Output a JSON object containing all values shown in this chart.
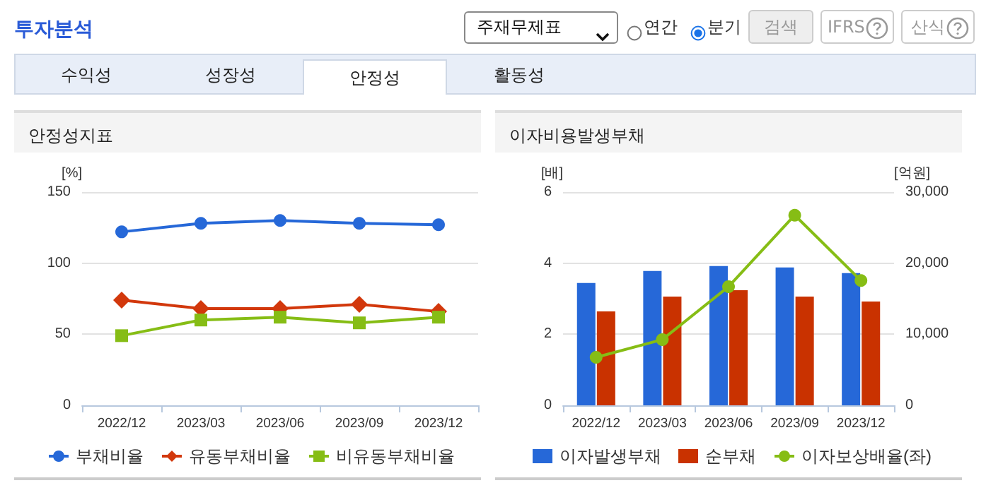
{
  "chart_data": [
    {
      "type": "other",
      "title": "투자분석",
      "annotations": [
        "주재무제표",
        "연간",
        "분기",
        "검색",
        "IFRS",
        "산식",
        "수익성",
        "성장성",
        "안정성",
        "활동성"
      ]
    },
    {
      "type": "line",
      "title": "안정성지표",
      "ylabel": "[%]",
      "categories": [
        "2022/12",
        "2023/03",
        "2023/06",
        "2023/09",
        "2023/12"
      ],
      "ylim": [
        0,
        150
      ],
      "yticks": [
        0,
        50,
        100,
        150
      ],
      "grid": "y",
      "legend": "bottom",
      "series": [
        {
          "name": "부채비율",
          "color": "#2668d8",
          "marker": "circle",
          "values": [
            122,
            128,
            130,
            128,
            127
          ]
        },
        {
          "name": "유동부채비율",
          "color": "#d2380c",
          "marker": "diamond",
          "values": [
            74,
            68,
            68,
            71,
            66
          ]
        },
        {
          "name": "비유동부채비율",
          "color": "#86bd15",
          "marker": "square",
          "values": [
            49,
            60,
            62,
            58,
            62
          ]
        }
      ]
    },
    {
      "type": "bar",
      "title": "이자비용발생부채",
      "ylabel": "[배]",
      "y2label": "[억원]",
      "categories": [
        "2022/12",
        "2023/03",
        "2023/06",
        "2023/09",
        "2023/12"
      ],
      "ylim": [
        0,
        6
      ],
      "yticks": [
        0,
        2,
        4,
        6
      ],
      "y2lim": [
        0,
        30000
      ],
      "y2ticks": [
        0,
        {
          "value": 10000,
          "label": "10,000"
        },
        {
          "value": 20000,
          "label": "20,000"
        },
        {
          "value": 30000,
          "label": "30,000"
        }
      ],
      "grid": "y",
      "legend": "bottom",
      "series": [
        {
          "name": "이자발생부채",
          "color": "#2668d8",
          "axis": "y2",
          "values": [
            17200,
            18900,
            19600,
            19400,
            18600
          ]
        },
        {
          "name": "순부채",
          "color": "#c93200",
          "axis": "y2",
          "values": [
            13200,
            15300,
            16200,
            15300,
            14600
          ]
        },
        {
          "name": "이자보상배율(좌)",
          "color": "#86bd15",
          "type": "line",
          "marker": "circle",
          "axis": "y",
          "values": [
            1.35,
            1.85,
            3.34,
            5.35,
            3.51
          ]
        }
      ]
    }
  ]
}
